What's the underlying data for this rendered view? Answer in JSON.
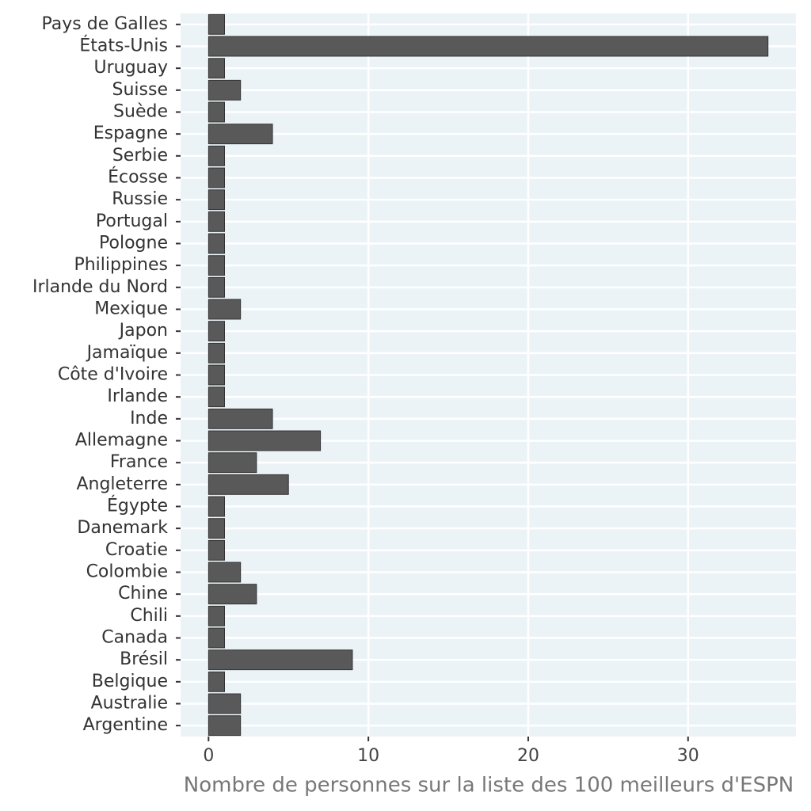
{
  "chart_data": {
    "type": "bar",
    "orientation": "horizontal",
    "x_label": "Nombre de personnes sur la liste des 100 meilleurs d'ESPN",
    "categories": [
      "Pays de Galles",
      "États-Unis",
      "Uruguay",
      "Suisse",
      "Suède",
      "Espagne",
      "Serbie",
      "Écosse",
      "Russie",
      "Portugal",
      "Pologne",
      "Philippines",
      "Irlande du Nord",
      "Mexique",
      "Japon",
      "Jamaïque",
      "Côte d'Ivoire",
      "Irlande",
      "Inde",
      "Allemagne",
      "France",
      "Angleterre",
      "Égypte",
      "Danemark",
      "Croatie",
      "Colombie",
      "Chine",
      "Chili",
      "Canada",
      "Brésil",
      "Belgique",
      "Australie",
      "Argentine"
    ],
    "values": [
      1,
      35,
      1,
      2,
      1,
      4,
      1,
      1,
      1,
      1,
      1,
      1,
      1,
      2,
      1,
      1,
      1,
      1,
      4,
      7,
      3,
      5,
      1,
      1,
      1,
      2,
      3,
      1,
      1,
      9,
      1,
      2,
      2
    ],
    "color": "#595959",
    "xlim": [
      -1.75,
      36.75
    ],
    "xticks": [
      0,
      10,
      20,
      30
    ],
    "grid": true
  }
}
